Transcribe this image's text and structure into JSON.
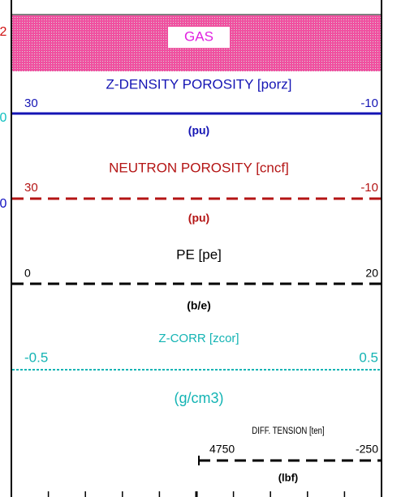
{
  "edge_fragments": [
    {
      "text": "2",
      "color": "#d01010"
    },
    {
      "text": "0",
      "color": "#10c0c0"
    },
    {
      "text": "0",
      "color": "#1010c0"
    }
  ],
  "gas_label": "GAS",
  "tracks": [
    {
      "name": "Z-DENSITY POROSITY [porz]",
      "left": "30",
      "right": "-10",
      "unit": "(pu)",
      "color": "#1414b4",
      "style": "solid"
    },
    {
      "name": "NEUTRON POROSITY [cncf]",
      "left": "30",
      "right": "-10",
      "unit": "(pu)",
      "color": "#b41414",
      "style": "dash"
    },
    {
      "name": "PE [pe]",
      "left": "0",
      "right": "20",
      "unit": "(b/e)",
      "color": "#000000",
      "style": "dash"
    },
    {
      "name": "Z-CORR [zcor]",
      "left": "-0.5",
      "right": "0.5",
      "unit": "(g/cm3)",
      "color": "#14b4b4",
      "style": "dot"
    },
    {
      "name": "DIFF. TENSION [ten]",
      "left": "4750",
      "right": "-250",
      "unit": "(lbf)",
      "color": "#000000",
      "style": "dash-half"
    }
  ]
}
